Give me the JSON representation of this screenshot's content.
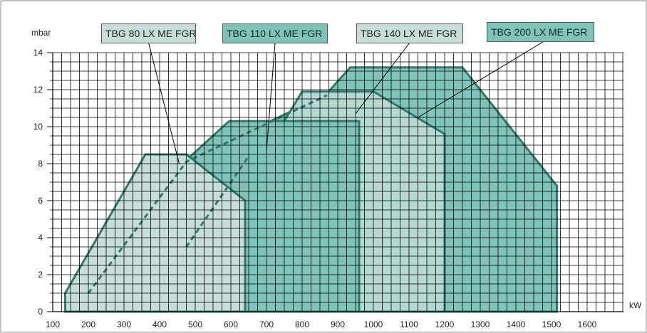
{
  "chart_data": {
    "type": "area",
    "xlabel": "kW",
    "ylabel": "mbar",
    "xlim": [
      0,
      1600
    ],
    "ylim": [
      0,
      14
    ],
    "x_ticks": [
      100,
      200,
      300,
      400,
      500,
      600,
      700,
      800,
      900,
      1000,
      1100,
      1200,
      1300,
      1400,
      1500,
      1600
    ],
    "y_ticks": [
      0,
      2,
      4,
      6,
      8,
      10,
      12,
      14
    ],
    "grid": true,
    "series": [
      {
        "name": "TBG 200 LX ME FGR",
        "fill": "#7ec4b8",
        "points": [
          [
            200,
            0
          ],
          [
            200,
            1.0
          ],
          [
            470,
            8.1
          ],
          [
            865,
            11.7
          ],
          [
            935,
            13.2
          ],
          [
            1250,
            13.2
          ],
          [
            1515,
            6.8
          ],
          [
            1515,
            0
          ]
        ]
      },
      {
        "name": "TBG 140 LX ME FGR",
        "fill": "#b5d8d1",
        "points": [
          [
            475,
            0
          ],
          [
            475,
            3.5
          ],
          [
            650,
            8.4
          ],
          [
            750,
            10.3
          ],
          [
            800,
            11.9
          ],
          [
            1000,
            11.9
          ],
          [
            1200,
            9.6
          ],
          [
            1200,
            0
          ]
        ]
      },
      {
        "name": "TBG 110 LX ME FGR",
        "fill": "#7ec4b8",
        "points": [
          [
            200,
            0
          ],
          [
            200,
            1.0
          ],
          [
            470,
            8.1
          ],
          [
            595,
            10.3
          ],
          [
            960,
            10.3
          ],
          [
            960,
            0
          ]
        ]
      },
      {
        "name": "TBG 80 LX ME FGR",
        "fill": "#c6ddd8",
        "points": [
          [
            135,
            0
          ],
          [
            135,
            1.0
          ],
          [
            360,
            8.5
          ],
          [
            475,
            8.5
          ],
          [
            640,
            6.0
          ],
          [
            640,
            0
          ]
        ]
      }
    ],
    "dashed_lines": [
      [
        [
          200,
          1.0
        ],
        [
          475,
          8.1
        ],
        [
          870,
          11.7
        ]
      ],
      [
        [
          475,
          3.5
        ],
        [
          650,
          8.4
        ]
      ]
    ]
  },
  "legend_labels": [
    {
      "text": "TBG 80 LX ME FGR",
      "fill": "#c6ddd8",
      "pointer": [
        455,
        8.0
      ]
    },
    {
      "text": "TBG 110 LX ME FGR",
      "fill": "#7ec4b8",
      "pointer": [
        700,
        8.7
      ]
    },
    {
      "text": "TBG 140 LX ME FGR",
      "fill": "#c6ddd8",
      "pointer": [
        950,
        10.7
      ]
    },
    {
      "text": "TBG 200 LX ME FGR",
      "fill": "#7ec4b8",
      "pointer": [
        1125,
        10.5
      ]
    }
  ],
  "colors": {
    "outline": "#2f7a6e",
    "grid": "#000000",
    "frame": "#888888"
  }
}
